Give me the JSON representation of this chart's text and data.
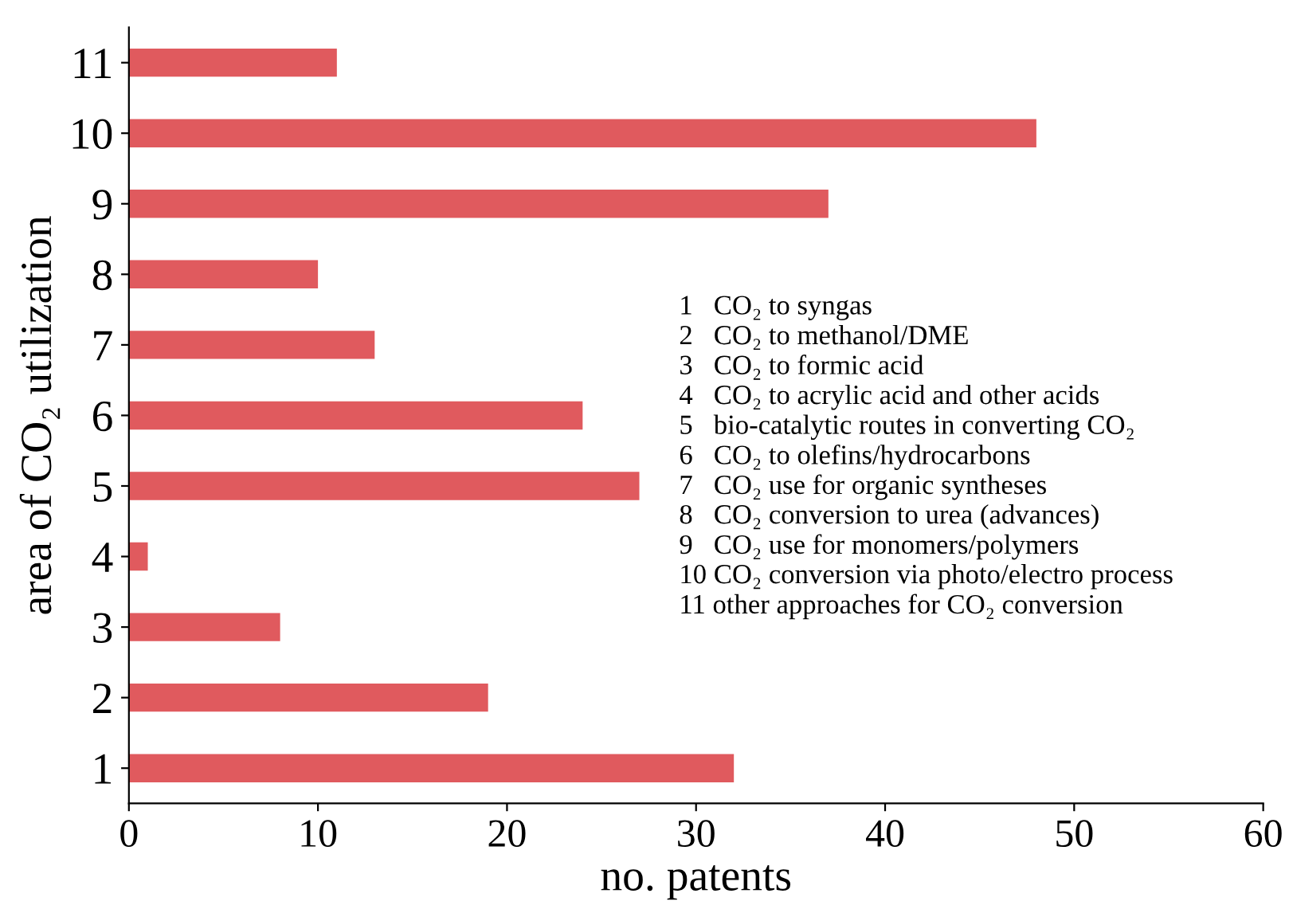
{
  "chart_data": {
    "type": "bar",
    "orientation": "horizontal",
    "xlabel": "no. patents",
    "ylabel": "area of CO₂ utilization",
    "categories": [
      "11",
      "10",
      "9",
      "8",
      "7",
      "6",
      "5",
      "4",
      "3",
      "2",
      "1"
    ],
    "values": [
      11,
      48,
      37,
      10,
      13,
      24,
      27,
      1,
      8,
      19,
      32
    ],
    "color": "#e05a5e",
    "xlim": [
      0,
      60
    ],
    "xticks": [
      0,
      10,
      20,
      30,
      40,
      50,
      60
    ],
    "grid": false,
    "legend": false,
    "annotations": [
      "1   CO₂ to syngas",
      "2   CO₂ to methanol/DME",
      "3   CO₂ to formic acid",
      "4   CO₂ to acrylic acid and other acids",
      "5   bio-catalytic routes in converting CO₂",
      "6   CO₂ to olefins/hydrocarbons",
      "7   CO₂ use for organic syntheses",
      "8   CO₂ conversion to urea (advances)",
      "9   CO₂ use for monomers/polymers",
      "10 CO₂ conversion via photo/electro process",
      "11 other approaches for CO₂ conversion"
    ]
  }
}
